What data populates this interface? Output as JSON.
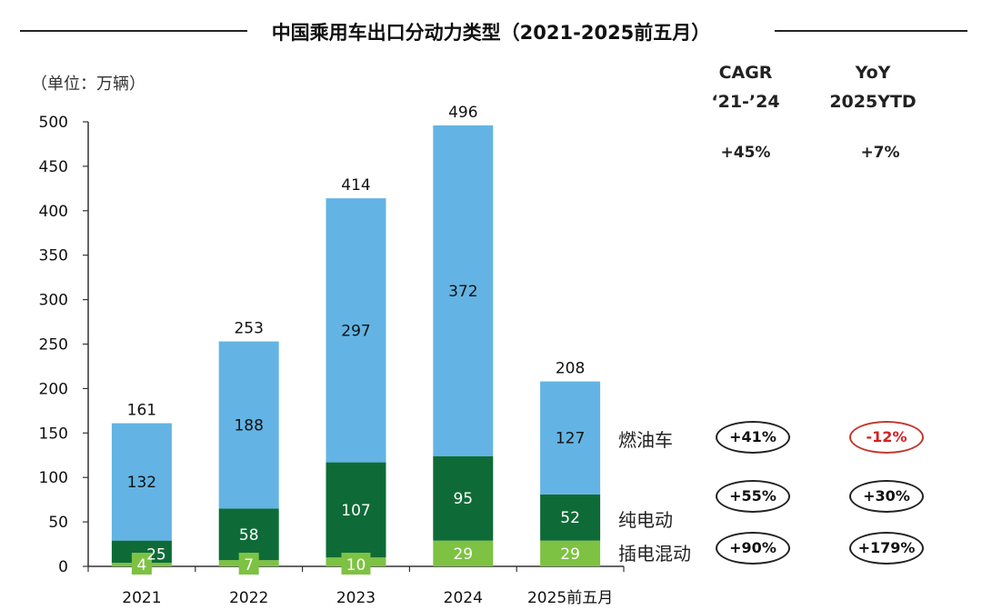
{
  "title": "中国乘用车出口分动力类型（2021-2025前五月）",
  "unit": "（单位：万辆）",
  "headers": {
    "cagr_line1": "CAGR",
    "cagr_line2": "‘21-’24",
    "yoy_line1": "YoY",
    "yoy_line2": "2025YTD"
  },
  "totals_growth": {
    "cagr": "+45%",
    "yoy": "+7%"
  },
  "series_growth": [
    {
      "label": "燃油车",
      "cagr": "+41%",
      "yoy": "-12%"
    },
    {
      "label": "纯电动",
      "cagr": "+55%",
      "yoy": "+30%"
    },
    {
      "label": "插电混动",
      "cagr": "+90%",
      "yoy": "+179%"
    }
  ],
  "colors": {
    "ice": "#63B4E4",
    "bev": "#0E6B37",
    "phev": "#7DC242",
    "negative": "#D42020"
  },
  "chart_data": {
    "type": "bar",
    "stacked": true,
    "categories": [
      "2021",
      "2022",
      "2023",
      "2024",
      "2025前五月"
    ],
    "series": [
      {
        "name": "插电混动",
        "values": [
          4,
          7,
          10,
          29,
          29
        ]
      },
      {
        "name": "纯电动",
        "values": [
          25,
          58,
          107,
          95,
          52
        ]
      },
      {
        "name": "燃油车",
        "values": [
          132,
          188,
          297,
          372,
          127
        ]
      }
    ],
    "totals": [
      161,
      253,
      414,
      496,
      208
    ],
    "ylim": [
      0,
      500
    ],
    "yticks": [
      0,
      50,
      100,
      150,
      200,
      250,
      300,
      350,
      400,
      450,
      500
    ],
    "grid": false,
    "legend": "right-inline"
  }
}
